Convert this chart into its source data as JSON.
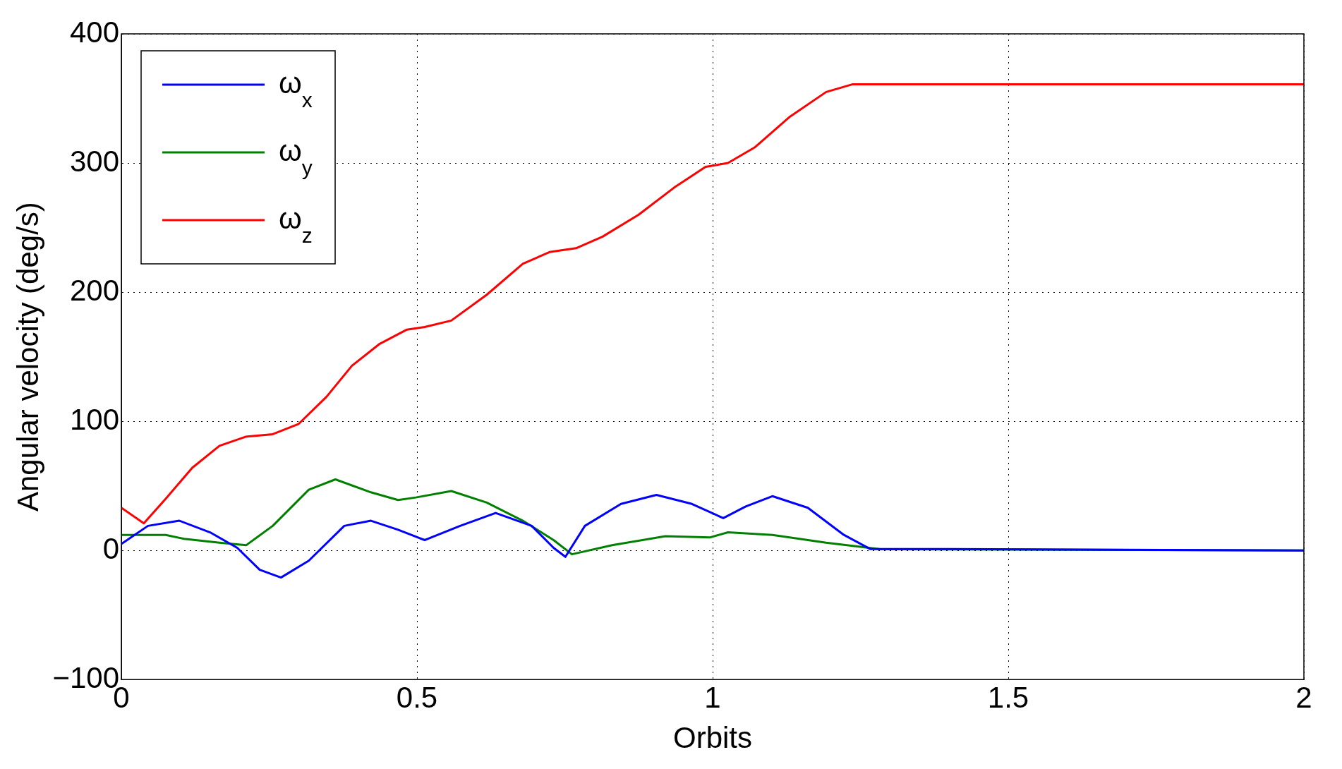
{
  "chart_data": {
    "type": "line",
    "xlabel": "Orbits",
    "ylabel": "Angular velocity (deg/s)",
    "xlim": [
      0,
      2
    ],
    "xticks": [
      0,
      0.5,
      1,
      1.5,
      2
    ],
    "ylim": [
      -100,
      400
    ],
    "yticks": [
      -100,
      0,
      100,
      200,
      300,
      400
    ],
    "grid": true,
    "legend": "top left",
    "line_style": "solid",
    "marker": "none",
    "series": [
      {
        "name": "ω$_{x}$",
        "color": "#0000ff",
        "x": [
          0,
          0.045,
          0.098,
          0.15,
          0.196,
          0.234,
          0.27,
          0.317,
          0.377,
          0.422,
          0.468,
          0.513,
          0.573,
          0.633,
          0.694,
          0.731,
          0.751,
          0.784,
          0.845,
          0.905,
          0.965,
          1.018,
          1.056,
          1.101,
          1.161,
          1.222,
          1.267,
          1.4,
          2
        ],
        "values": [
          5,
          19,
          23,
          14,
          2,
          -15,
          -21,
          -8,
          19,
          23,
          16,
          8,
          19,
          29,
          19,
          2,
          -5,
          19,
          36,
          43,
          36,
          25,
          34,
          42,
          33,
          12,
          1,
          1,
          0
        ]
      },
      {
        "name": "ω$_{y}$",
        "color": "#008000",
        "x": [
          0,
          0.075,
          0.106,
          0.166,
          0.211,
          0.256,
          0.317,
          0.362,
          0.422,
          0.468,
          0.498,
          0.558,
          0.618,
          0.679,
          0.731,
          0.762,
          0.83,
          0.92,
          0.995,
          1.026,
          1.101,
          1.192,
          1.282,
          2
        ],
        "values": [
          12,
          12,
          9,
          6,
          4,
          19,
          47,
          55,
          45,
          39,
          41,
          46,
          37,
          23,
          8,
          -3,
          4,
          11,
          10,
          14,
          12,
          6,
          1,
          0
        ]
      },
      {
        "name": "ω$_{z}$",
        "color": "#ff0000",
        "x": [
          0,
          0.038,
          0.075,
          0.12,
          0.166,
          0.21,
          0.256,
          0.3,
          0.347,
          0.39,
          0.437,
          0.483,
          0.513,
          0.558,
          0.618,
          0.679,
          0.724,
          0.769,
          0.814,
          0.875,
          0.935,
          0.988,
          1.026,
          1.071,
          1.131,
          1.192,
          1.237,
          1.5,
          2
        ],
        "values": [
          33,
          21,
          40,
          64,
          81,
          88,
          90,
          98,
          119,
          143,
          160,
          171,
          173,
          178,
          198,
          222,
          231,
          234,
          243,
          260,
          281,
          297,
          300,
          312,
          336,
          355,
          361,
          361,
          361
        ]
      }
    ]
  }
}
